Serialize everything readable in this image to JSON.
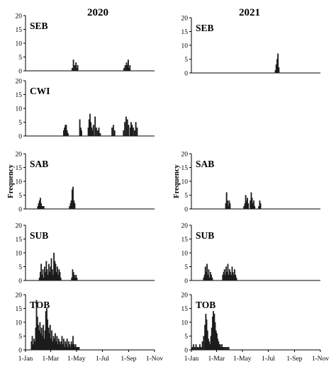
{
  "chart_data": [
    {
      "type": "bar",
      "column": "2020",
      "label": "SEB",
      "ylim": [
        0,
        20
      ],
      "yticks": [
        0,
        5,
        10,
        15,
        20
      ],
      "x": [
        111,
        114,
        117,
        120,
        122,
        124,
        233,
        236,
        239,
        241,
        243,
        245,
        247
      ],
      "values": [
        1,
        4,
        2,
        3,
        1,
        2,
        1,
        2,
        3,
        2,
        4,
        1,
        2
      ]
    },
    {
      "type": "bar",
      "column": "2020",
      "label": "CWI",
      "ylim": [
        0,
        20
      ],
      "yticks": [
        0,
        5,
        10,
        15,
        20
      ],
      "x": [
        91,
        93,
        95,
        97,
        99,
        101,
        129,
        131,
        133,
        149,
        151,
        153,
        155,
        157,
        159,
        161,
        165,
        168,
        171,
        174,
        177,
        205,
        208,
        211,
        232,
        235,
        238,
        241,
        244,
        248,
        250,
        252,
        255,
        258,
        261,
        264
      ],
      "values": [
        2,
        3,
        4,
        4,
        2,
        1,
        6,
        3,
        2,
        3,
        6,
        8,
        5,
        3,
        2,
        4,
        7,
        3,
        2,
        3,
        1,
        3,
        4,
        2,
        2,
        5,
        7,
        6,
        4,
        3,
        5,
        4,
        3,
        2,
        5,
        3
      ]
    },
    {
      "type": "bar",
      "column": "2020",
      "label": "SAB",
      "ylim": [
        0,
        20
      ],
      "yticks": [
        0,
        5,
        10,
        15,
        20
      ],
      "x": [
        30,
        32,
        34,
        36,
        38,
        40,
        42,
        44,
        105,
        107,
        109,
        111,
        113,
        115,
        117
      ],
      "values": [
        1,
        2,
        3,
        4,
        2,
        1,
        1,
        1,
        1,
        2,
        3,
        7,
        8,
        3,
        2
      ]
    },
    {
      "type": "bar",
      "column": "2020",
      "label": "SUB",
      "ylim": [
        0,
        20
      ],
      "yticks": [
        0,
        5,
        10,
        15,
        20
      ],
      "x": [
        34,
        36,
        38,
        40,
        42,
        44,
        46,
        48,
        50,
        52,
        54,
        56,
        58,
        60,
        62,
        64,
        66,
        68,
        70,
        72,
        74,
        76,
        78,
        80,
        82,
        84,
        110,
        112,
        114,
        116,
        118,
        120,
        122
      ],
      "values": [
        1,
        3,
        6,
        2,
        4,
        1,
        5,
        3,
        7,
        4,
        2,
        6,
        3,
        5,
        8,
        4,
        2,
        10,
        7,
        6,
        3,
        5,
        2,
        4,
        3,
        1,
        1,
        4,
        3,
        2,
        1,
        2,
        1
      ]
    },
    {
      "type": "bar",
      "column": "2020",
      "label": "TOB",
      "ylim": [
        0,
        20
      ],
      "yticks": [
        0,
        5,
        10,
        15,
        20
      ],
      "x": [
        15,
        17,
        19,
        21,
        23,
        25,
        27,
        29,
        31,
        33,
        35,
        37,
        39,
        41,
        43,
        45,
        47,
        49,
        51,
        53,
        55,
        57,
        59,
        61,
        63,
        65,
        67,
        69,
        71,
        73,
        75,
        77,
        79,
        81,
        83,
        85,
        87,
        89,
        91,
        93,
        95,
        97,
        99,
        101,
        103,
        105,
        107,
        109,
        111,
        113,
        115,
        117,
        119,
        121,
        123,
        125,
        127
      ],
      "values": [
        3,
        5,
        2,
        4,
        3,
        8,
        18,
        12,
        9,
        7,
        10,
        6,
        8,
        5,
        9,
        4,
        7,
        14,
        15,
        11,
        8,
        6,
        9,
        4,
        7,
        3,
        5,
        4,
        6,
        3,
        5,
        2,
        4,
        3,
        2,
        3,
        5,
        2,
        4,
        1,
        3,
        2,
        4,
        1,
        3,
        2,
        1,
        3,
        2,
        5,
        2,
        1,
        2,
        1,
        1,
        1,
        1
      ]
    },
    {
      "type": "bar",
      "column": "2021",
      "label": "SEB",
      "ylim": [
        0,
        20
      ],
      "yticks": [
        0,
        5,
        10,
        15,
        20
      ],
      "x": [
        199,
        201,
        203,
        205,
        207
      ],
      "values": [
        1,
        3,
        5,
        7,
        2
      ]
    },
    {
      "type": "bar",
      "column": "2021",
      "label": "SAB",
      "ylim": [
        0,
        20
      ],
      "yticks": [
        0,
        5,
        10,
        15,
        20
      ],
      "x": [
        82,
        84,
        86,
        88,
        90,
        92,
        125,
        127,
        129,
        131,
        133,
        135,
        140,
        142,
        144,
        146,
        148,
        150,
        160,
        162,
        164
      ],
      "values": [
        2,
        6,
        3,
        1,
        3,
        2,
        1,
        2,
        5,
        3,
        4,
        2,
        3,
        6,
        4,
        2,
        3,
        1,
        1,
        3,
        2
      ]
    },
    {
      "type": "bar",
      "column": "2021",
      "label": "SUB",
      "ylim": [
        0,
        20
      ],
      "yticks": [
        0,
        5,
        10,
        15,
        20
      ],
      "x": [
        30,
        32,
        34,
        36,
        38,
        40,
        42,
        44,
        46,
        48,
        50,
        75,
        77,
        79,
        81,
        83,
        85,
        87,
        89,
        91,
        93,
        95,
        97,
        99,
        101,
        103,
        105,
        107
      ],
      "values": [
        1,
        2,
        5,
        3,
        6,
        2,
        4,
        1,
        3,
        2,
        1,
        2,
        3,
        4,
        2,
        5,
        3,
        6,
        2,
        4,
        3,
        2,
        5,
        3,
        2,
        4,
        2,
        1
      ]
    },
    {
      "type": "bar",
      "column": "2021",
      "label": "TOB",
      "ylim": [
        0,
        20
      ],
      "yticks": [
        0,
        5,
        10,
        15,
        20
      ],
      "x": [
        3,
        6,
        9,
        12,
        15,
        18,
        21,
        24,
        27,
        30,
        33,
        35,
        37,
        39,
        41,
        43,
        45,
        47,
        49,
        51,
        53,
        55,
        57,
        59,
        61,
        63,
        65,
        67,
        69,
        71,
        73,
        75,
        77,
        80,
        83,
        86,
        89
      ],
      "values": [
        1,
        2,
        1,
        2,
        1,
        1,
        2,
        1,
        3,
        5,
        9,
        13,
        11,
        7,
        4,
        3,
        2,
        5,
        8,
        12,
        14,
        13,
        10,
        7,
        6,
        4,
        3,
        2,
        2,
        1,
        2,
        1,
        1,
        1,
        1,
        1,
        1
      ]
    }
  ],
  "shared": {
    "ylabel": "Frequency",
    "xtick_labels": [
      "1-Jan",
      "1-Mar",
      "1-May",
      "1-Jul",
      "1-Sep",
      "1-Nov"
    ],
    "xtick_days": [
      1,
      60,
      121,
      182,
      244,
      305
    ],
    "xlim": [
      1,
      305
    ]
  },
  "header": {
    "left": "2020",
    "right": "2021"
  },
  "colors": {
    "bars": "#1c1c1c",
    "axes": "#000000"
  }
}
